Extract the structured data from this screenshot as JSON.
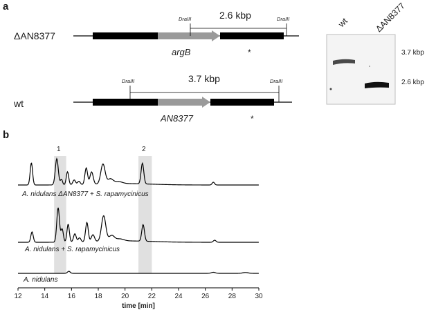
{
  "panels": {
    "a": {
      "letter": "a",
      "knockout": {
        "label": "ΔAN8377",
        "gene": "argB",
        "site_left": "DraIII",
        "site_right": "DraIII",
        "fragment": "2.6 kbp",
        "asterisk": "*"
      },
      "wildtype": {
        "label": "wt",
        "gene": "AN8377",
        "site_left": "DraIII",
        "site_right": "DraIII",
        "fragment": "3.7 kbp",
        "asterisk": "*"
      },
      "blot": {
        "lanes": [
          "wt",
          "ΔAN8377"
        ],
        "band_labels": [
          "3.7 kbp",
          "2.6 kbp"
        ]
      }
    },
    "b": {
      "letter": "b",
      "peaks": [
        "1",
        "2"
      ],
      "traces": [
        {
          "label": "A. nidulans ΔAN8377 + S. rapamycinicus"
        },
        {
          "label": "A. nidulans + S. rapamycinicus"
        },
        {
          "label": "A. nidulans"
        }
      ],
      "x_axis": {
        "title": "time [min]",
        "min": 12,
        "max": 30,
        "ticks": [
          "12",
          "14",
          "16",
          "18",
          "20",
          "22",
          "24",
          "26",
          "28",
          "30"
        ]
      },
      "highlight_regions_min": [
        [
          14.7,
          15.6
        ],
        [
          21.0,
          22.0
        ]
      ]
    }
  },
  "colors": {
    "exon": "#000000",
    "marker_cassette": "#9a9a9a",
    "highlight": "#e0e0e0",
    "trace": "#000000",
    "blot_background": "#f4f4f4",
    "blot_band": "#1a1a1a"
  }
}
